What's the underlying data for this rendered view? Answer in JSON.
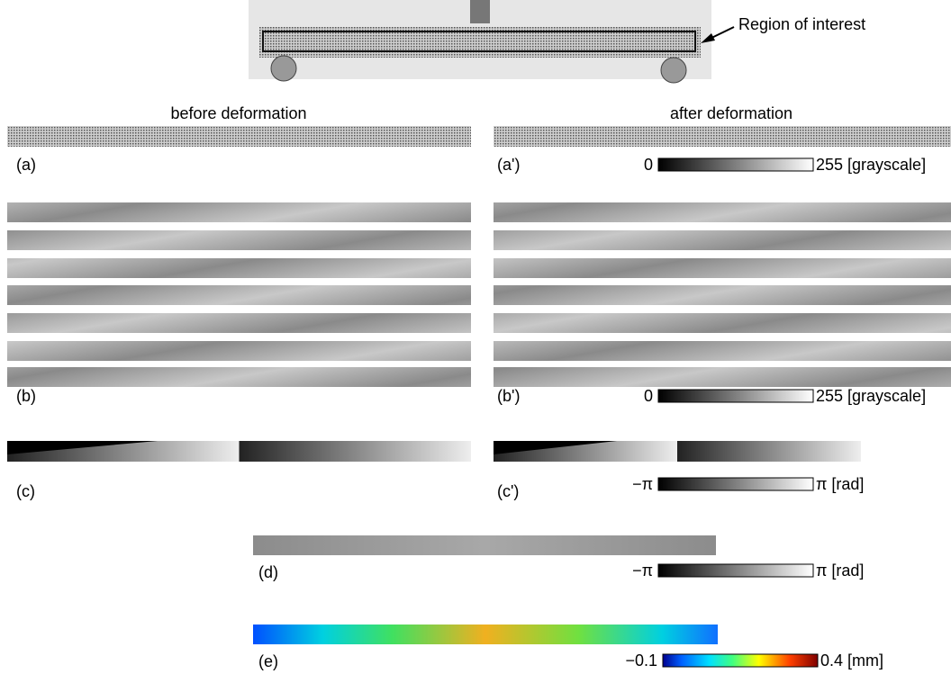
{
  "photo": {
    "annotation": "Region of interest"
  },
  "columns": [
    {
      "heading": "before deformation"
    },
    {
      "heading": "after deformation"
    }
  ],
  "panels": {
    "a": "(a)",
    "a_prime": "(a')",
    "b": "(b)",
    "b_prime": "(b')",
    "c": "(c)",
    "c_prime": "(c')",
    "d": "(d)",
    "e": "(e)"
  },
  "colorbars": [
    {
      "min_label": "0",
      "max_label": "255 [grayscale]"
    },
    {
      "min_label": "0",
      "max_label": "255 [grayscale]"
    },
    {
      "min_label": "−π",
      "max_label": "π [rad]"
    },
    {
      "min_label": "−π",
      "max_label": "π [rad]"
    },
    {
      "min_label": "−0.1",
      "max_label": "0.4 [mm]"
    }
  ]
}
